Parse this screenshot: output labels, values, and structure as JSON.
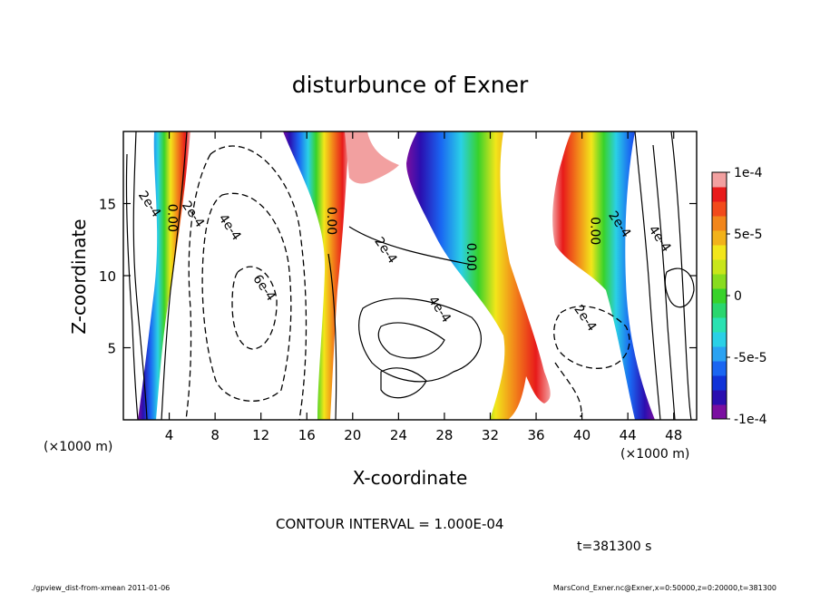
{
  "chart_data": {
    "type": "heatmap",
    "title": "disturbunce of Exner",
    "xlabel": "X-coordinate",
    "ylabel": "Z-coordinate",
    "x_unit": "(×1000 m)",
    "y_unit": "(×1000 m)",
    "xlim": [
      0,
      50
    ],
    "ylim": [
      0,
      20
    ],
    "x_ticks": [
      4,
      8,
      12,
      16,
      20,
      24,
      28,
      32,
      36,
      40,
      44,
      48
    ],
    "y_ticks": [
      5,
      10,
      15
    ],
    "colorbar": {
      "range": [
        -0.0001,
        0.0001
      ],
      "tick_labels": [
        "1e-4",
        "5e-5",
        "0",
        "-5e-5",
        "-1e-4"
      ],
      "tick_values": [
        0.0001,
        5e-05,
        0,
        -5e-05,
        -0.0001
      ],
      "colors": [
        "#7a0fa0",
        "#2a0fb0",
        "#1033d8",
        "#1a66f2",
        "#2aa2f2",
        "#2ad0e6",
        "#2ae2b2",
        "#2ad66e",
        "#38d22a",
        "#88dc1e",
        "#c8e61a",
        "#f2e61a",
        "#f2b21a",
        "#f2861a",
        "#f24a1a",
        "#e81a1a",
        "#f2a0a0"
      ]
    },
    "contour_labels": [
      {
        "text": "2e-4",
        "x": 2.0,
        "z": 14.8
      },
      {
        "text": "0.00",
        "x": 3.9,
        "z": 14.0
      },
      {
        "text": "2e-4",
        "x": 5.8,
        "z": 14.1
      },
      {
        "text": "4e-4",
        "x": 9.0,
        "z": 13.2
      },
      {
        "text": "6e-4",
        "x": 12.0,
        "z": 9.0
      },
      {
        "text": "0.00",
        "x": 17.8,
        "z": 13.8
      },
      {
        "text": "2e-4",
        "x": 22.6,
        "z": 11.6
      },
      {
        "text": "4e-4",
        "x": 27.3,
        "z": 7.5
      },
      {
        "text": "0.00",
        "x": 30.0,
        "z": 11.3
      },
      {
        "text": "2e-4",
        "x": 40.0,
        "z": 6.9
      },
      {
        "text": "0.00",
        "x": 40.8,
        "z": 13.1
      },
      {
        "text": "2e-4",
        "x": 43.0,
        "z": 13.4
      },
      {
        "text": "4e-4",
        "x": 46.5,
        "z": 12.4
      }
    ],
    "annotation_interval": "CONTOUR INTERVAL = 1.000E-04",
    "annotation_time": "t=381300 s",
    "footer_left": "./gpview_dist-from-xmean  2011-01-06",
    "footer_right": "MarsCond_Exner.nc@Exner,x=0:50000,z=0:20000,t=381300"
  }
}
